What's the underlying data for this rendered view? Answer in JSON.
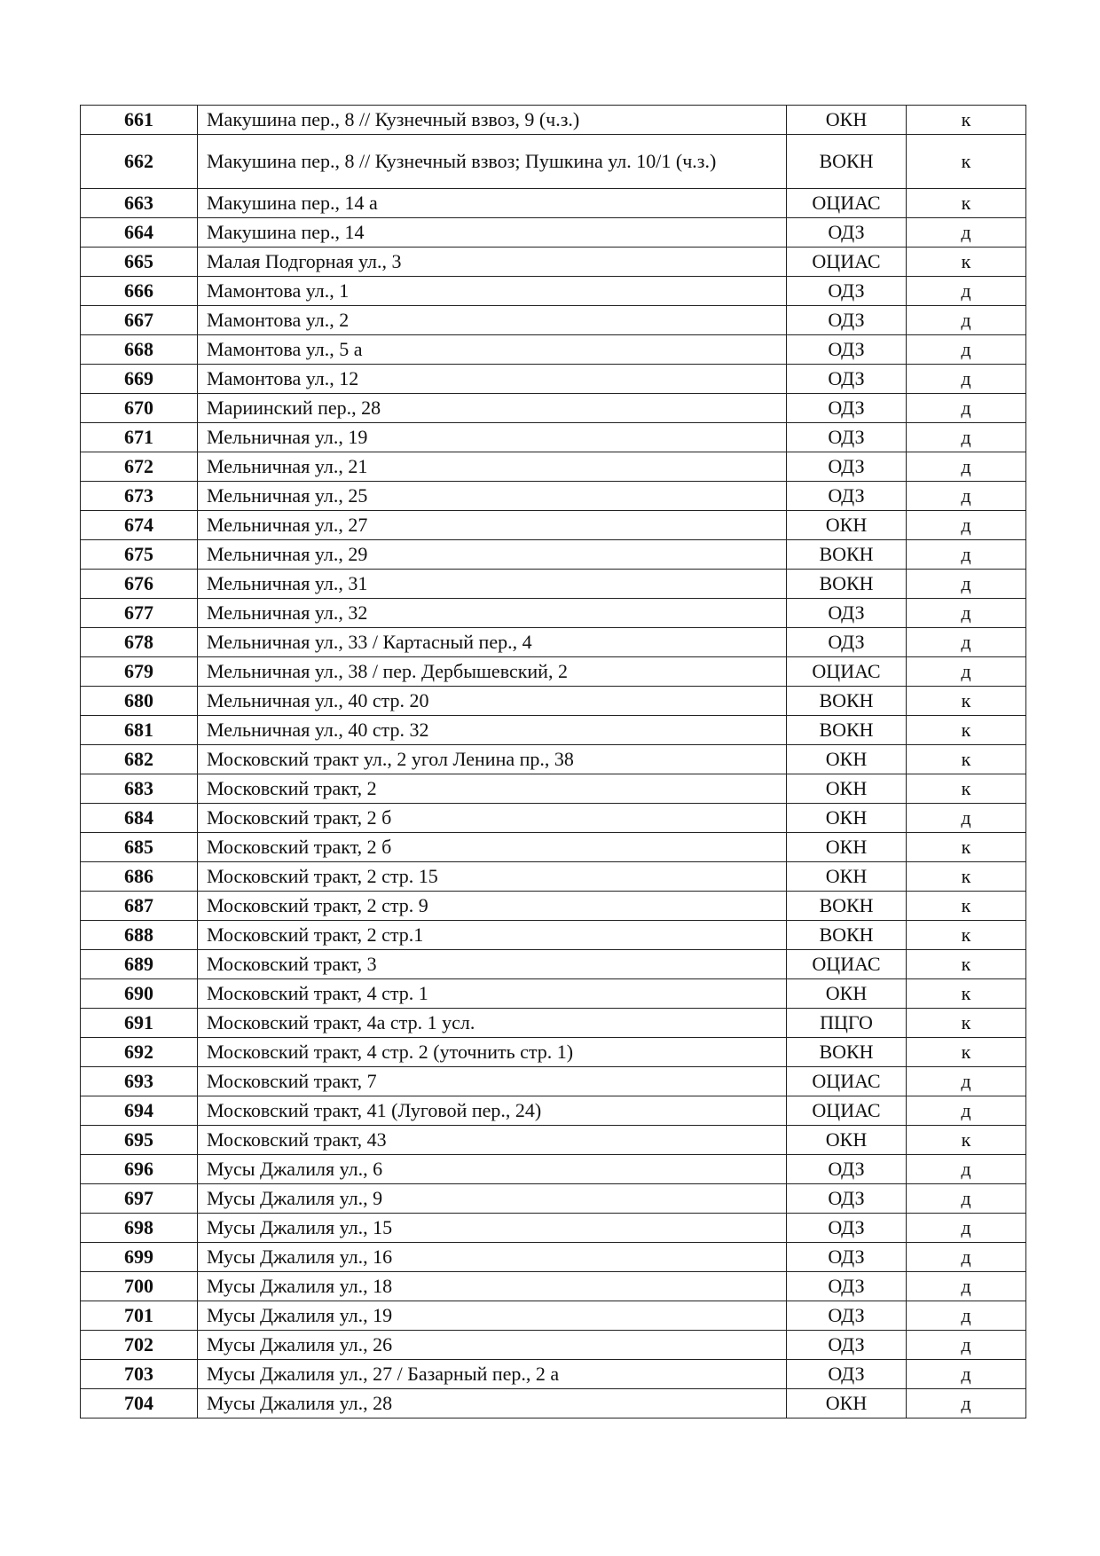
{
  "table": {
    "rows": [
      {
        "num": "661",
        "address": "Макушина пер., 8 // Кузнечный взвоз, 9 (ч.з.)",
        "category": "ОКН",
        "type": "к"
      },
      {
        "num": "662",
        "address": "Макушина пер., 8 // Кузнечный взвоз; Пушкина ул. 10/1 (ч.з.)",
        "category": "ВОКН",
        "type": "к"
      },
      {
        "num": "663",
        "address": "Макушина пер., 14 а",
        "category": "ОЦИАС",
        "type": "к"
      },
      {
        "num": "664",
        "address": "Макушина пер., 14",
        "category": "ОДЗ",
        "type": "д"
      },
      {
        "num": "665",
        "address": "Малая Подгорная ул., 3",
        "category": "ОЦИАС",
        "type": "к"
      },
      {
        "num": "666",
        "address": "Мамонтова ул., 1",
        "category": "ОДЗ",
        "type": "д"
      },
      {
        "num": "667",
        "address": "Мамонтова ул., 2",
        "category": "ОДЗ",
        "type": "д"
      },
      {
        "num": "668",
        "address": "Мамонтова ул., 5 а",
        "category": "ОДЗ",
        "type": "д"
      },
      {
        "num": "669",
        "address": "Мамонтова ул., 12",
        "category": "ОДЗ",
        "type": "д"
      },
      {
        "num": "670",
        "address": "Мариинский пер., 28",
        "category": "ОДЗ",
        "type": "д"
      },
      {
        "num": "671",
        "address": "Мельничная ул., 19",
        "category": "ОДЗ",
        "type": "д"
      },
      {
        "num": "672",
        "address": "Мельничная ул., 21",
        "category": "ОДЗ",
        "type": "д"
      },
      {
        "num": "673",
        "address": "Мельничная ул., 25",
        "category": "ОДЗ",
        "type": "д"
      },
      {
        "num": "674",
        "address": "Мельничная ул., 27",
        "category": "ОКН",
        "type": "д"
      },
      {
        "num": "675",
        "address": "Мельничная ул., 29",
        "category": "ВОКН",
        "type": "д"
      },
      {
        "num": "676",
        "address": "Мельничная ул., 31",
        "category": "ВОКН",
        "type": "д"
      },
      {
        "num": "677",
        "address": "Мельничная ул., 32",
        "category": "ОДЗ",
        "type": "д"
      },
      {
        "num": "678",
        "address": "Мельничная ул., 33 / Картасный пер., 4",
        "category": "ОДЗ",
        "type": "д"
      },
      {
        "num": "679",
        "address": "Мельничная ул., 38 / пер. Дербышевский, 2",
        "category": "ОЦИАС",
        "type": "д"
      },
      {
        "num": "680",
        "address": "Мельничная ул., 40 стр. 20",
        "category": "ВОКН",
        "type": "к"
      },
      {
        "num": "681",
        "address": "Мельничная ул., 40 стр. 32",
        "category": "ВОКН",
        "type": "к"
      },
      {
        "num": "682",
        "address": "Московский тракт ул., 2 угол Ленина пр., 38",
        "category": "ОКН",
        "type": "к"
      },
      {
        "num": "683",
        "address": "Московский тракт, 2",
        "category": "ОКН",
        "type": "к"
      },
      {
        "num": "684",
        "address": "Московский тракт, 2 б",
        "category": "ОКН",
        "type": "д"
      },
      {
        "num": "685",
        "address": "Московский тракт, 2 б",
        "category": "ОКН",
        "type": "к"
      },
      {
        "num": "686",
        "address": "Московский тракт, 2 стр. 15",
        "category": "ОКН",
        "type": "к"
      },
      {
        "num": "687",
        "address": "Московский тракт, 2 стр. 9",
        "category": "ВОКН",
        "type": "к"
      },
      {
        "num": "688",
        "address": "Московский тракт, 2 стр.1",
        "category": "ВОКН",
        "type": "к"
      },
      {
        "num": "689",
        "address": "Московский тракт, 3",
        "category": "ОЦИАС",
        "type": "к"
      },
      {
        "num": "690",
        "address": "Московский тракт, 4 стр. 1",
        "category": "ОКН",
        "type": "к"
      },
      {
        "num": "691",
        "address": "Московский тракт, 4а стр. 1 усл.",
        "category": "ПЦГО",
        "type": "к"
      },
      {
        "num": "692",
        "address": "Московский тракт, 4 стр. 2 (уточнить стр. 1)",
        "category": "ВОКН",
        "type": "к"
      },
      {
        "num": "693",
        "address": "Московский тракт, 7",
        "category": "ОЦИАС",
        "type": "д"
      },
      {
        "num": "694",
        "address": "Московский тракт, 41 (Луговой пер., 24)",
        "category": "ОЦИАС",
        "type": "д"
      },
      {
        "num": "695",
        "address": "Московский тракт, 43",
        "category": "ОКН",
        "type": "к"
      },
      {
        "num": "696",
        "address": "Мусы Джалиля ул., 6",
        "category": "ОДЗ",
        "type": "д"
      },
      {
        "num": "697",
        "address": "Мусы Джалиля ул., 9",
        "category": "ОДЗ",
        "type": "д"
      },
      {
        "num": "698",
        "address": "Мусы Джалиля ул., 15",
        "category": "ОДЗ",
        "type": "д"
      },
      {
        "num": "699",
        "address": "Мусы Джалиля ул., 16",
        "category": "ОДЗ",
        "type": "д"
      },
      {
        "num": "700",
        "address": "Мусы Джалиля ул., 18",
        "category": "ОДЗ",
        "type": "д"
      },
      {
        "num": "701",
        "address": "Мусы Джалиля ул., 19",
        "category": "ОДЗ",
        "type": "д"
      },
      {
        "num": "702",
        "address": "Мусы Джалиля ул., 26",
        "category": "ОДЗ",
        "type": "д"
      },
      {
        "num": "703",
        "address": "Мусы Джалиля ул., 27 / Базарный пер., 2 а",
        "category": "ОДЗ",
        "type": "д"
      },
      {
        "num": "704",
        "address": "Мусы Джалиля ул., 28",
        "category": "ОКН",
        "type": "д"
      }
    ]
  }
}
